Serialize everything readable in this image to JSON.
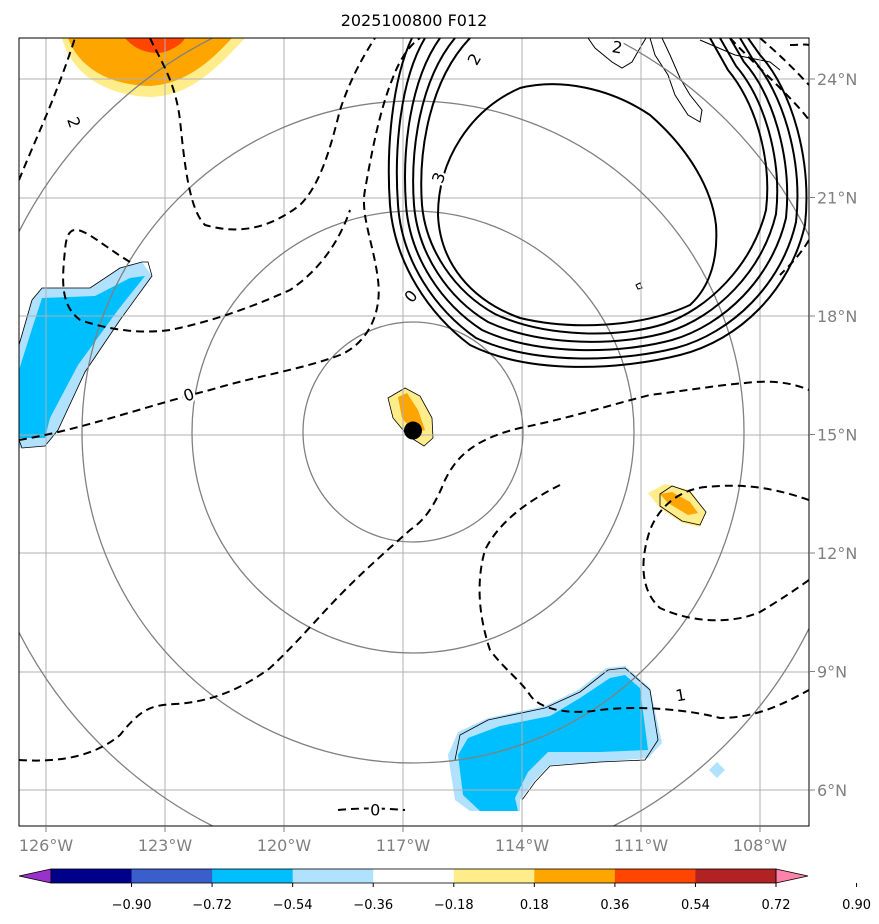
{
  "title": "2025100800 F012",
  "map": {
    "lon_range": [
      -127.0,
      -107.0
    ],
    "lat_range": [
      5.0,
      25.0
    ],
    "lon_ticks": [
      {
        "value": -126,
        "label": "126°W"
      },
      {
        "value": -123,
        "label": "123°W"
      },
      {
        "value": -120,
        "label": "120°W"
      },
      {
        "value": -117,
        "label": "117°W"
      },
      {
        "value": -114,
        "label": "114°W"
      },
      {
        "value": -111,
        "label": "111°W"
      },
      {
        "value": -108,
        "label": "108°W"
      }
    ],
    "lat_ticks": [
      {
        "value": 6,
        "label": "6°N"
      },
      {
        "value": 9,
        "label": "9°N"
      },
      {
        "value": 12,
        "label": "12°N"
      },
      {
        "value": 15,
        "label": "15°N"
      },
      {
        "value": 18,
        "label": "18°N"
      },
      {
        "value": 21,
        "label": "21°N"
      },
      {
        "value": 24,
        "label": "24°N"
      }
    ],
    "storm_center": {
      "lon": -117.0,
      "lat": 15.1
    },
    "range_ring_radii_deg": [
      2.8,
      5.6,
      8.4,
      11.2
    ],
    "contour_labels": [
      {
        "text": "2",
        "lon": -125.3,
        "lat": 22.9,
        "rot": 70
      },
      {
        "text": "2",
        "lon": -115.2,
        "lat": 24.5,
        "rot": -60
      },
      {
        "text": "2",
        "lon": -111.6,
        "lat": 24.8,
        "rot": 10
      },
      {
        "text": "3",
        "lon": -116.1,
        "lat": 21.5,
        "rot": -70
      },
      {
        "text": "0",
        "lon": -116.8,
        "lat": 18.5,
        "rot": -50
      },
      {
        "text": "0",
        "lon": -122.4,
        "lat": 16.0,
        "rot": -20
      },
      {
        "text": "0",
        "lon": -117.7,
        "lat": 5.5,
        "rot": 0
      },
      {
        "text": "1",
        "lon": -110.0,
        "lat": 8.4,
        "rot": -10
      }
    ]
  },
  "colorbar": {
    "ticks": [
      "−0.90",
      "−0.72",
      "−0.54",
      "−0.36",
      "−0.18",
      "0.18",
      "0.36",
      "0.54",
      "0.72",
      "0.90"
    ],
    "colors": [
      "#9932cc",
      "#00008b",
      "#3a5fcd",
      "#00bfff",
      "#b0e2ff",
      "#ffffff",
      "#ffec8b",
      "#ffa500",
      "#ff4500",
      "#b22222",
      "#ff82ab"
    ]
  }
}
